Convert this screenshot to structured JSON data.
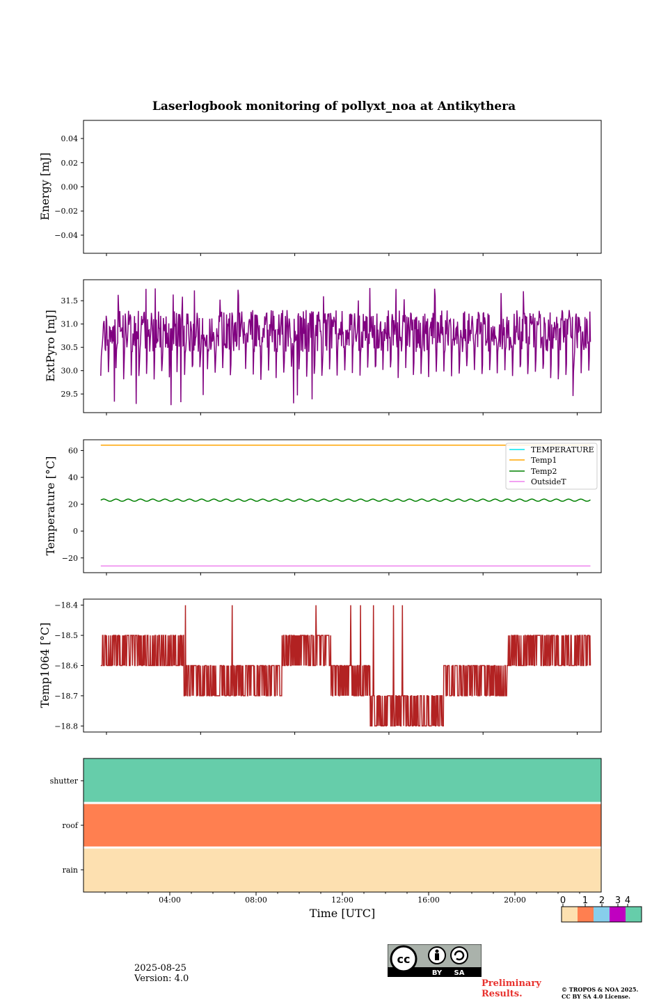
{
  "title": "Laserlogbook monitoring of pollyxt_noa at Antikythera",
  "footer": {
    "date": "2025-08-25",
    "version": "Version: 4.0",
    "preliminary_line1": "Preliminary",
    "preliminary_line2": "Results.",
    "copyright_line1": "© TROPOS & NOA 2025.",
    "copyright_line2": "CC BY SA 4.0 License.",
    "cc_labels": [
      "cc",
      "BY",
      "SA"
    ]
  },
  "colors": {
    "energy": "#800080",
    "extpyro": "#800080",
    "temperature": "#00e5ee",
    "temp1": "#ffa500",
    "temp2": "#008000",
    "outsidet": "#ee82ee",
    "temp1064": "#b22222",
    "status": [
      "#fde0b0",
      "#ff7f50",
      "#87ceeb",
      "#c000c0",
      "#66cdaa"
    ]
  },
  "chart_data": [
    {
      "type": "line",
      "name": "energy",
      "ylabel": "Energy [mJ]",
      "ylim": [
        -0.055,
        0.055
      ],
      "yticks": [
        0.04,
        0.02,
        0.0,
        -0.02,
        -0.04
      ],
      "ytick_labels": [
        "0.04",
        "0.02",
        "0.00",
        "−0.02",
        "−0.04"
      ],
      "series": []
    },
    {
      "type": "line",
      "name": "extpyro",
      "ylabel": "ExtPyro [mJ]",
      "ylim": [
        29.1,
        31.95
      ],
      "yticks": [
        31.5,
        31.0,
        30.5,
        30.0,
        29.5
      ],
      "ytick_labels": [
        "31.5",
        "31.0",
        "30.5",
        "30.0",
        "29.5"
      ],
      "series": [
        {
          "name": "ExtPyro",
          "range": [
            29.2,
            31.87
          ],
          "approx_mean": 30.8,
          "x_range_h": [
            0.8,
            23.5
          ]
        }
      ]
    },
    {
      "type": "line",
      "name": "temperature",
      "ylabel": "Temperature [°C]",
      "ylim": [
        -31,
        68
      ],
      "yticks": [
        60,
        40,
        20,
        0,
        -20
      ],
      "ytick_labels": [
        "60",
        "40",
        "20",
        "0",
        "−20"
      ],
      "legend": [
        "TEMPERATURE",
        "Temp1",
        "Temp2",
        "OutsideT"
      ],
      "legend_position": "upper right",
      "series": [
        {
          "name": "TEMPERATURE",
          "values": []
        },
        {
          "name": "Temp1",
          "value": 64
        },
        {
          "name": "Temp2",
          "value": 23,
          "amplitude": 0.8
        },
        {
          "name": "OutsideT",
          "value": -26
        }
      ]
    },
    {
      "type": "line",
      "name": "temp1064",
      "ylabel": "Temp1064 [°C]",
      "ylim": [
        -18.82,
        -18.38
      ],
      "yticks": [
        -18.4,
        -18.5,
        -18.6,
        -18.7,
        -18.8
      ],
      "ytick_labels": [
        "−18.4",
        "−18.5",
        "−18.6",
        "−18.7",
        "−18.8"
      ],
      "series": [
        {
          "name": "Temp1064",
          "levels": [
            -18.4,
            -18.5,
            -18.6,
            -18.7,
            -18.8
          ]
        }
      ]
    },
    {
      "type": "status",
      "name": "status",
      "rows": [
        "shutter",
        "roof",
        "rain"
      ],
      "row_values": [
        4,
        1,
        0
      ],
      "xlabel": "Time [UTC]",
      "xlim_h": [
        0,
        24
      ],
      "xticks_h": [
        4,
        8,
        12,
        16,
        20
      ],
      "xtick_labels": [
        "04:00",
        "08:00",
        "12:00",
        "16:00",
        "20:00"
      ],
      "colorbar": {
        "labels": [
          "0",
          "1",
          "2",
          "3",
          "4"
        ]
      }
    }
  ]
}
